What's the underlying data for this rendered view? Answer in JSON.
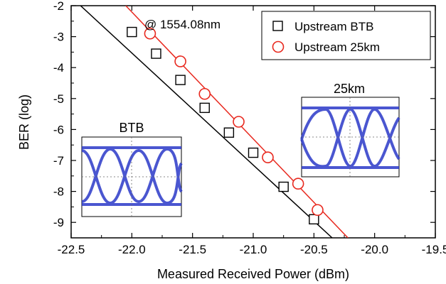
{
  "chart_data": {
    "type": "scatter",
    "xlabel": "Measured Received Power (dBm)",
    "ylabel": "BER (log)",
    "xlim": [
      -22.5,
      -19.5
    ],
    "ylim": [
      -9.5,
      -2
    ],
    "x_ticks": [
      -22.5,
      -22.0,
      -21.5,
      -21.0,
      -20.5,
      -20.0,
      -19.5
    ],
    "x_tick_labels": [
      "-22.5",
      "-22.0",
      "-21.5",
      "-21.0",
      "-20.5",
      "-20.0",
      "-19.5"
    ],
    "y_ticks": [
      -9,
      -8,
      -7,
      -6,
      -5,
      -4,
      -3,
      -2
    ],
    "y_tick_labels": [
      "-9",
      "-8",
      "-7",
      "-6",
      "-5",
      "-4",
      "-3",
      "-2"
    ],
    "grid": false,
    "legend_position": "top-right",
    "annotation": "@ 1554.08nm",
    "series": [
      {
        "name": "Upstream BTB",
        "marker": "square",
        "color": "#000000",
        "x": [
          -22.0,
          -21.8,
          -21.6,
          -21.4,
          -21.2,
          -21.0,
          -20.75,
          -20.5
        ],
        "y": [
          -2.85,
          -3.55,
          -4.4,
          -5.3,
          -6.1,
          -6.75,
          -7.85,
          -8.9
        ],
        "fit_line": {
          "x": [
            -22.45,
            -20.35
          ],
          "y": [
            -1.9,
            -9.5
          ]
        }
      },
      {
        "name": "Upstream 25km",
        "marker": "circle",
        "color": "#e8281e",
        "x": [
          -21.85,
          -21.6,
          -21.4,
          -21.12,
          -20.88,
          -20.63,
          -20.47
        ],
        "y": [
          -2.9,
          -3.8,
          -4.85,
          -5.75,
          -6.9,
          -7.75,
          -8.6
        ],
        "fit_line": {
          "x": [
            -22.05,
            -20.22
          ],
          "y": [
            -2.0,
            -9.5
          ]
        }
      }
    ],
    "insets": [
      {
        "label": "BTB",
        "trace_color": "#2b39c8"
      },
      {
        "label": "25km",
        "trace_color": "#2b39c8"
      }
    ]
  }
}
